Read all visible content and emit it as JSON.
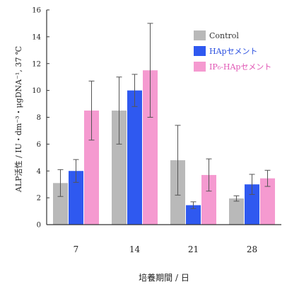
{
  "chart_data": {
    "type": "bar",
    "title": "",
    "xlabel": "培養期間 / 日",
    "ylabel": "ALP活性 / IU・dm⁻³・μgDNA⁻¹, 37 ℃",
    "ylim": [
      0,
      16
    ],
    "yticks": [
      "0",
      "2",
      "4",
      "6",
      "8",
      "10",
      "12",
      "14",
      "16"
    ],
    "grid": false,
    "legend_position": "top-right",
    "categories": [
      "7",
      "14",
      "21",
      "28"
    ],
    "series": [
      {
        "name": "Control",
        "color": "#b9b9b9",
        "text_color": "#333333",
        "values": [
          3.1,
          8.5,
          4.8,
          1.95
        ],
        "errors": [
          1.0,
          2.5,
          2.6,
          0.2
        ]
      },
      {
        "name": "HApセメント",
        "color": "#2f59f0",
        "text_color": "#2a4fe0",
        "values": [
          4.0,
          10.0,
          1.45,
          3.0
        ],
        "errors": [
          0.85,
          1.2,
          0.25,
          0.75
        ]
      },
      {
        "name": "IP₆-HApセメント",
        "color": "#f59ad0",
        "text_color": "#e055b4",
        "values": [
          8.5,
          11.5,
          3.7,
          3.45
        ],
        "errors": [
          2.2,
          3.5,
          1.2,
          0.6
        ]
      }
    ]
  }
}
